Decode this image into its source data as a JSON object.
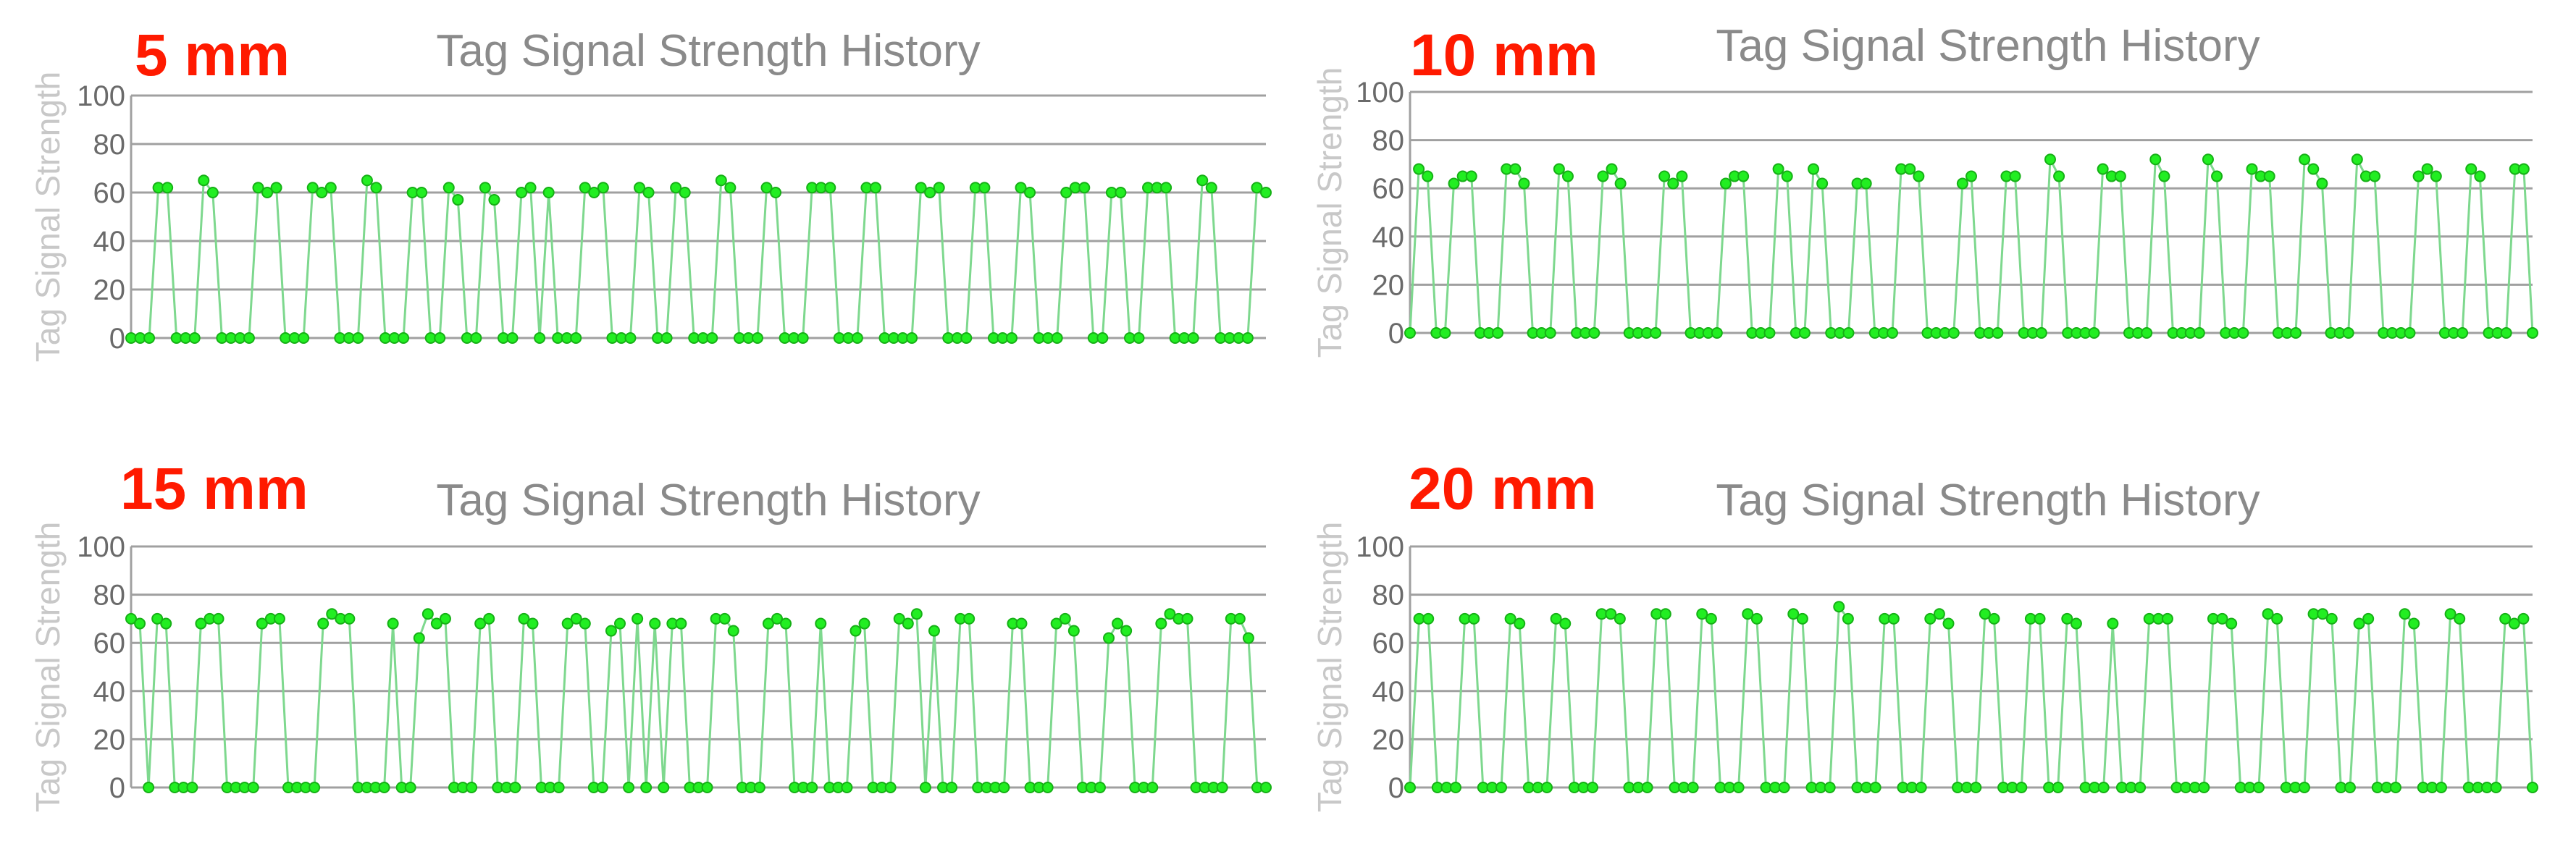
{
  "colors": {
    "panel_label": "#ff1a00",
    "title": "#8a8a8a",
    "axis_label": "#c8c8c8",
    "tick_label": "#6a6a6a",
    "gridline": "#a0a0a0",
    "series_line": "#7ed88e",
    "series_marker": "#22ee22",
    "series_marker_stroke": "#16b016"
  },
  "panels": [
    {
      "label": "5 mm"
    },
    {
      "label": "10 mm"
    },
    {
      "label": "15 mm"
    },
    {
      "label": "20 mm"
    }
  ],
  "chart_data": [
    {
      "type": "line",
      "title": "Tag Signal Strength History",
      "xlabel": "",
      "ylabel": "Tag Signal Strength",
      "ylim": [
        0,
        100
      ],
      "yticks": [
        0,
        20,
        40,
        60,
        80,
        100
      ],
      "grid": true,
      "legend": false,
      "series": [
        {
          "values": [
            0,
            0,
            0,
            62,
            62,
            0,
            0,
            0,
            65,
            60,
            0,
            0,
            0,
            0,
            62,
            60,
            62,
            0,
            0,
            0,
            62,
            60,
            62,
            0,
            0,
            0,
            65,
            62,
            0,
            0,
            0,
            60,
            60,
            0,
            0,
            62,
            57,
            0,
            0,
            62,
            57,
            0,
            0,
            60,
            62,
            0,
            60,
            0,
            0,
            0,
            62,
            60,
            62,
            0,
            0,
            0,
            62,
            60,
            0,
            0,
            62,
            60,
            0,
            0,
            0,
            65,
            62,
            0,
            0,
            0,
            62,
            60,
            0,
            0,
            0,
            62,
            62,
            62,
            0,
            0,
            0,
            62,
            62,
            0,
            0,
            0,
            0,
            62,
            60,
            62,
            0,
            0,
            0,
            62,
            62,
            0,
            0,
            0,
            62,
            60,
            0,
            0,
            0,
            60,
            62,
            62,
            0,
            0,
            60,
            60,
            0,
            0,
            62,
            62,
            62,
            0,
            0,
            0,
            65,
            62,
            0,
            0,
            0,
            0,
            62,
            60
          ]
        }
      ]
    },
    {
      "type": "line",
      "title": "Tag Signal Strength History",
      "xlabel": "",
      "ylabel": "Tag Signal Strength",
      "ylim": [
        0,
        100
      ],
      "yticks": [
        0,
        20,
        40,
        60,
        80,
        100
      ],
      "grid": true,
      "legend": false,
      "series": [
        {
          "values": [
            0,
            68,
            65,
            0,
            0,
            62,
            65,
            65,
            0,
            0,
            0,
            68,
            68,
            62,
            0,
            0,
            0,
            68,
            65,
            0,
            0,
            0,
            65,
            68,
            62,
            0,
            0,
            0,
            0,
            65,
            62,
            65,
            0,
            0,
            0,
            0,
            62,
            65,
            65,
            0,
            0,
            0,
            68,
            65,
            0,
            0,
            68,
            62,
            0,
            0,
            0,
            62,
            62,
            0,
            0,
            0,
            68,
            68,
            65,
            0,
            0,
            0,
            0,
            62,
            65,
            0,
            0,
            0,
            65,
            65,
            0,
            0,
            0,
            72,
            65,
            0,
            0,
            0,
            0,
            68,
            65,
            65,
            0,
            0,
            0,
            72,
            65,
            0,
            0,
            0,
            0,
            72,
            65,
            0,
            0,
            0,
            68,
            65,
            65,
            0,
            0,
            0,
            72,
            68,
            62,
            0,
            0,
            0,
            72,
            65,
            65,
            0,
            0,
            0,
            0,
            65,
            68,
            65,
            0,
            0,
            0,
            68,
            65,
            0,
            0,
            0,
            68,
            68,
            0
          ]
        }
      ]
    },
    {
      "type": "line",
      "title": "Tag Signal Strength History",
      "xlabel": "",
      "ylabel": "Tag Signal Strength",
      "ylim": [
        0,
        100
      ],
      "yticks": [
        0,
        20,
        40,
        60,
        80,
        100
      ],
      "grid": true,
      "legend": false,
      "series": [
        {
          "values": [
            70,
            68,
            0,
            70,
            68,
            0,
            0,
            0,
            68,
            70,
            70,
            0,
            0,
            0,
            0,
            68,
            70,
            70,
            0,
            0,
            0,
            0,
            68,
            72,
            70,
            70,
            0,
            0,
            0,
            0,
            68,
            0,
            0,
            62,
            72,
            68,
            70,
            0,
            0,
            0,
            68,
            70,
            0,
            0,
            0,
            70,
            68,
            0,
            0,
            0,
            68,
            70,
            68,
            0,
            0,
            65,
            68,
            0,
            70,
            0,
            68,
            0,
            68,
            68,
            0,
            0,
            0,
            70,
            70,
            65,
            0,
            0,
            0,
            68,
            70,
            68,
            0,
            0,
            0,
            68,
            0,
            0,
            0,
            65,
            68,
            0,
            0,
            0,
            70,
            68,
            72,
            0,
            65,
            0,
            0,
            70,
            70,
            0,
            0,
            0,
            0,
            68,
            68,
            0,
            0,
            0,
            68,
            70,
            65,
            0,
            0,
            0,
            62,
            68,
            65,
            0,
            0,
            0,
            68,
            72,
            70,
            70,
            0,
            0,
            0,
            0,
            70,
            70,
            62,
            0,
            0
          ]
        }
      ]
    },
    {
      "type": "line",
      "title": "Tag Signal Strength History",
      "xlabel": "",
      "ylabel": "Tag Signal Strength",
      "ylim": [
        0,
        100
      ],
      "yticks": [
        0,
        20,
        40,
        60,
        80,
        100
      ],
      "grid": true,
      "legend": false,
      "series": [
        {
          "values": [
            0,
            70,
            70,
            0,
            0,
            0,
            70,
            70,
            0,
            0,
            0,
            70,
            68,
            0,
            0,
            0,
            70,
            68,
            0,
            0,
            0,
            72,
            72,
            70,
            0,
            0,
            0,
            72,
            72,
            0,
            0,
            0,
            72,
            70,
            0,
            0,
            0,
            72,
            70,
            0,
            0,
            0,
            72,
            70,
            0,
            0,
            0,
            75,
            70,
            0,
            0,
            0,
            70,
            70,
            0,
            0,
            0,
            70,
            72,
            68,
            0,
            0,
            0,
            72,
            70,
            0,
            0,
            0,
            70,
            70,
            0,
            0,
            70,
            68,
            0,
            0,
            0,
            68,
            0,
            0,
            0,
            70,
            70,
            70,
            0,
            0,
            0,
            0,
            70,
            70,
            68,
            0,
            0,
            0,
            72,
            70,
            0,
            0,
            0,
            72,
            72,
            70,
            0,
            0,
            68,
            70,
            0,
            0,
            0,
            72,
            68,
            0,
            0,
            0,
            72,
            70,
            0,
            0,
            0,
            0,
            70,
            68,
            70,
            0
          ]
        }
      ]
    }
  ]
}
